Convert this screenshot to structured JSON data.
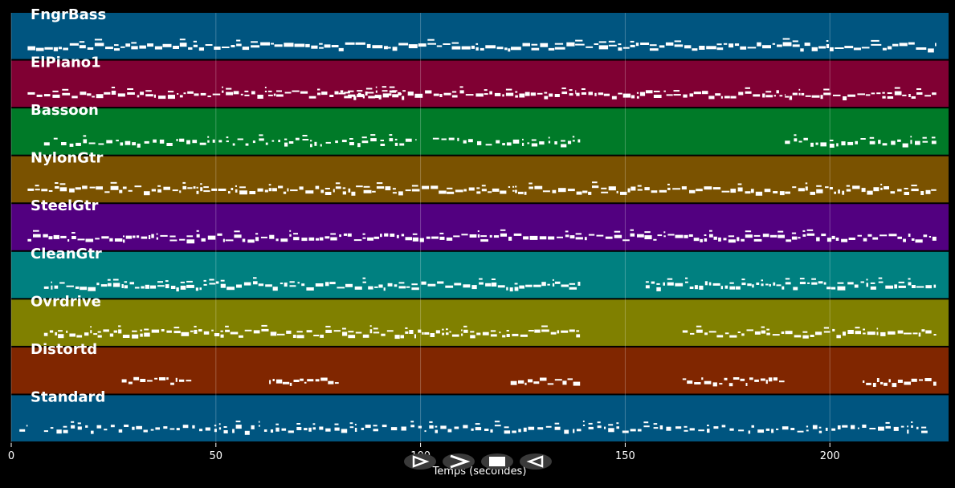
{
  "chart_data": {
    "type": "piano-roll",
    "title": "",
    "xlabel": "Temps (secondes)",
    "ylabel": "",
    "xlim": [
      0,
      229
    ],
    "xticks": [
      0,
      50,
      100,
      150,
      200
    ],
    "grid": true,
    "tracks": [
      {
        "name": "FngrBass",
        "color": "#005580",
        "segments": [
          [
            4,
            80
          ],
          [
            80,
            92
          ],
          [
            92,
            226
          ]
        ],
        "density": "continuous"
      },
      {
        "name": "ElPiano1",
        "color": "#800033",
        "segments": [
          [
            4,
            138
          ],
          [
            80,
            96
          ],
          [
            138,
            189
          ],
          [
            189,
            226
          ]
        ],
        "density": "dense"
      },
      {
        "name": "Bassoon",
        "color": "#007a28",
        "segments": [
          [
            8,
            99
          ],
          [
            103,
            139
          ],
          [
            189,
            226
          ]
        ],
        "density": "sparse"
      },
      {
        "name": "NylonGtr",
        "color": "#7a5200",
        "segments": [
          [
            4,
            226
          ]
        ],
        "density": "dense"
      },
      {
        "name": "SteelGtr",
        "color": "#520080",
        "segments": [
          [
            4,
            226
          ]
        ],
        "density": "dense"
      },
      {
        "name": "CleanGtr",
        "color": "#008080",
        "segments": [
          [
            8,
            139
          ],
          [
            155,
            226
          ]
        ],
        "density": "dense"
      },
      {
        "name": "Ovrdrive",
        "color": "#808000",
        "segments": [
          [
            8,
            139
          ],
          [
            164,
            226
          ]
        ],
        "density": "dense"
      },
      {
        "name": "Distortd",
        "color": "#802600",
        "segments": [
          [
            27,
            44
          ],
          [
            63,
            80
          ],
          [
            122,
            139
          ],
          [
            164,
            189
          ],
          [
            208,
            226
          ]
        ],
        "density": "blocks"
      },
      {
        "name": "Standard",
        "color": "#005580",
        "segments": [
          [
            2,
            4
          ],
          [
            8,
            224
          ]
        ],
        "density": "sparse"
      }
    ]
  },
  "controls": {
    "icons": [
      "play-outline-icon",
      "forward-icon",
      "stop-icon",
      "back-icon"
    ],
    "color": "#3a3a3a"
  }
}
